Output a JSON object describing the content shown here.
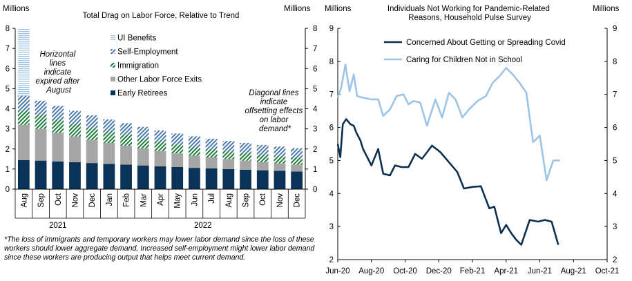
{
  "chart_data": [
    {
      "type": "bar",
      "stacked": true,
      "title": "Total Drag  on Labor Force, Relative  to Trend",
      "unit_label_left": "Millions",
      "unit_label_right": "Millions",
      "ylim": [
        0,
        8
      ],
      "yticks": [
        0,
        1,
        2,
        3,
        4,
        5,
        6,
        7,
        8
      ],
      "categories": [
        "Aug",
        "Sep",
        "Oct",
        "Nov",
        "Dec",
        "Jan",
        "Feb",
        "Mar",
        "Apr",
        "May",
        "Jun",
        "Jul",
        "Aug",
        "Sep",
        "Oct",
        "Nov",
        "Dec"
      ],
      "year_groups": [
        {
          "label": "2021",
          "start": 0,
          "end": 4
        },
        {
          "label": "2022",
          "start": 5,
          "end": 16
        }
      ],
      "series": [
        {
          "name": "Early Retirees",
          "color": "#0b3358",
          "values": [
            1.45,
            1.42,
            1.38,
            1.34,
            1.3,
            1.26,
            1.22,
            1.18,
            1.14,
            1.1,
            1.06,
            1.03,
            1.0,
            0.97,
            0.94,
            0.91,
            0.88
          ]
        },
        {
          "name": "Other Labor Force Exits",
          "color": "#a6a6a6",
          "values": [
            1.75,
            1.58,
            1.42,
            1.28,
            1.15,
            1.04,
            0.94,
            0.85,
            0.76,
            0.68,
            0.61,
            0.55,
            0.5,
            0.45,
            0.4,
            0.37,
            0.34
          ]
        },
        {
          "name": "Immigration",
          "color": "#1e7b3a",
          "pattern": "diagonal",
          "values": [
            0.7,
            0.68,
            0.65,
            0.62,
            0.58,
            0.55,
            0.52,
            0.49,
            0.46,
            0.44,
            0.42,
            0.4,
            0.38,
            0.37,
            0.36,
            0.35,
            0.34
          ]
        },
        {
          "name": "Self-Employment",
          "color": "#3a6ea5",
          "pattern": "diagonal",
          "values": [
            0.75,
            0.72,
            0.69,
            0.66,
            0.64,
            0.62,
            0.6,
            0.58,
            0.56,
            0.55,
            0.54,
            0.53,
            0.52,
            0.51,
            0.5,
            0.49,
            0.48
          ]
        },
        {
          "name": "UI Benefits",
          "color": "#9dc3e6",
          "pattern": "horizontal",
          "values": [
            3.35,
            0,
            0,
            0,
            0,
            0,
            0,
            0,
            0,
            0,
            0,
            0,
            0,
            0,
            0,
            0,
            0
          ]
        }
      ],
      "legend_order": [
        "UI Benefits",
        "Self-Employment",
        "Immigration",
        "Other Labor Force Exits",
        "Early Retirees"
      ],
      "annotations": [
        {
          "text": "Horizontal lines indicate expired after August",
          "lines": [
            "Horizontal",
            "lines",
            "indicate",
            "expired after",
            "August"
          ]
        },
        {
          "text": "Diagonal lines indicate offsetting effects on labor demand*",
          "lines": [
            "Diagonal lines",
            "indicate",
            "offsetting effects",
            "on labor",
            "demand*"
          ]
        }
      ],
      "footnote": "*The loss of immigrants and temporary workers may lower labor demand since the loss of these workers should lower aggregate demand. Increased self-employment might lower labor demand since these workers are producing output that helps meet current demand."
    },
    {
      "type": "line",
      "title": "Individuals  Not Working for Pandemic-Related Reasons, Household  Pulse Survey",
      "title_lines": [
        "Individuals  Not Working for Pandemic-Related",
        "Reasons, Household  Pulse Survey"
      ],
      "unit_label_left": "Millions",
      "unit_label_right": "Millions",
      "left_axis": {
        "ylim": [
          2,
          9
        ],
        "yticks": [
          2,
          3,
          4,
          5,
          6,
          7,
          8,
          9
        ]
      },
      "right_axis": {
        "ylim": [
          2,
          9
        ],
        "yticks": [
          2,
          3,
          4,
          5,
          6,
          7,
          8,
          9
        ]
      },
      "x_ticks": [
        "Jun-20",
        "Aug-20",
        "Oct-20",
        "Dec-20",
        "Feb-21",
        "Apr-21",
        "Jun-21",
        "Aug-21",
        "Oct-21"
      ],
      "x_range_months": [
        0,
        16
      ],
      "series": [
        {
          "name": "Concerned About Getting or Spreading Covid",
          "color": "#0b2f4f",
          "axis": "left",
          "x": [
            0,
            0.15,
            0.3,
            0.5,
            0.75,
            0.95,
            1.1,
            1.35,
            1.5,
            2.0,
            2.4,
            2.7,
            3.1,
            3.4,
            3.8,
            4.2,
            4.6,
            5.0,
            5.3,
            5.6,
            6.1,
            6.6,
            7.1,
            7.5,
            8.0,
            8.5,
            9.0,
            9.3,
            9.7,
            10.0,
            10.3,
            10.6,
            10.9,
            11.4,
            11.9,
            12.3,
            12.7,
            13.1,
            13.5,
            13.9
          ],
          "y": [
            5.5,
            5.1,
            6.1,
            6.25,
            6.1,
            6.05,
            5.85,
            5.6,
            5.35,
            4.85,
            5.35,
            4.6,
            4.55,
            4.85,
            4.8,
            4.8,
            5.2,
            5.05,
            5.25,
            5.45,
            5.25,
            4.95,
            4.65,
            4.15,
            4.2,
            4.22,
            3.55,
            3.6,
            2.8,
            3.05,
            2.8,
            2.6,
            2.45,
            3.2,
            3.15,
            3.2,
            3.15,
            2.45,
            null,
            null
          ]
        },
        {
          "name": "Caring for Children Not in School",
          "color": "#9dc3e6",
          "axis": "right",
          "x": [
            0,
            0.2,
            0.45,
            0.7,
            0.95,
            1.15,
            1.5,
            2.0,
            2.4,
            2.7,
            3.1,
            3.5,
            3.9,
            4.2,
            4.5,
            4.9,
            5.3,
            5.8,
            6.2,
            6.6,
            7.0,
            7.4,
            7.8,
            8.3,
            8.8,
            9.2,
            9.6,
            10.0,
            10.4,
            10.8,
            11.2,
            11.6,
            12.0,
            12.4,
            12.8,
            13.2,
            13.6,
            13.9
          ],
          "y": [
            6.9,
            7.2,
            7.9,
            7.1,
            7.6,
            6.95,
            6.9,
            6.85,
            6.85,
            6.35,
            6.55,
            6.95,
            7.0,
            6.7,
            6.8,
            6.75,
            6.05,
            6.85,
            6.3,
            7.05,
            6.85,
            6.3,
            6.55,
            6.8,
            6.95,
            7.35,
            7.55,
            7.8,
            7.6,
            7.35,
            7.05,
            5.55,
            5.75,
            4.4,
            5.0,
            5.0,
            null,
            null
          ]
        }
      ]
    }
  ]
}
